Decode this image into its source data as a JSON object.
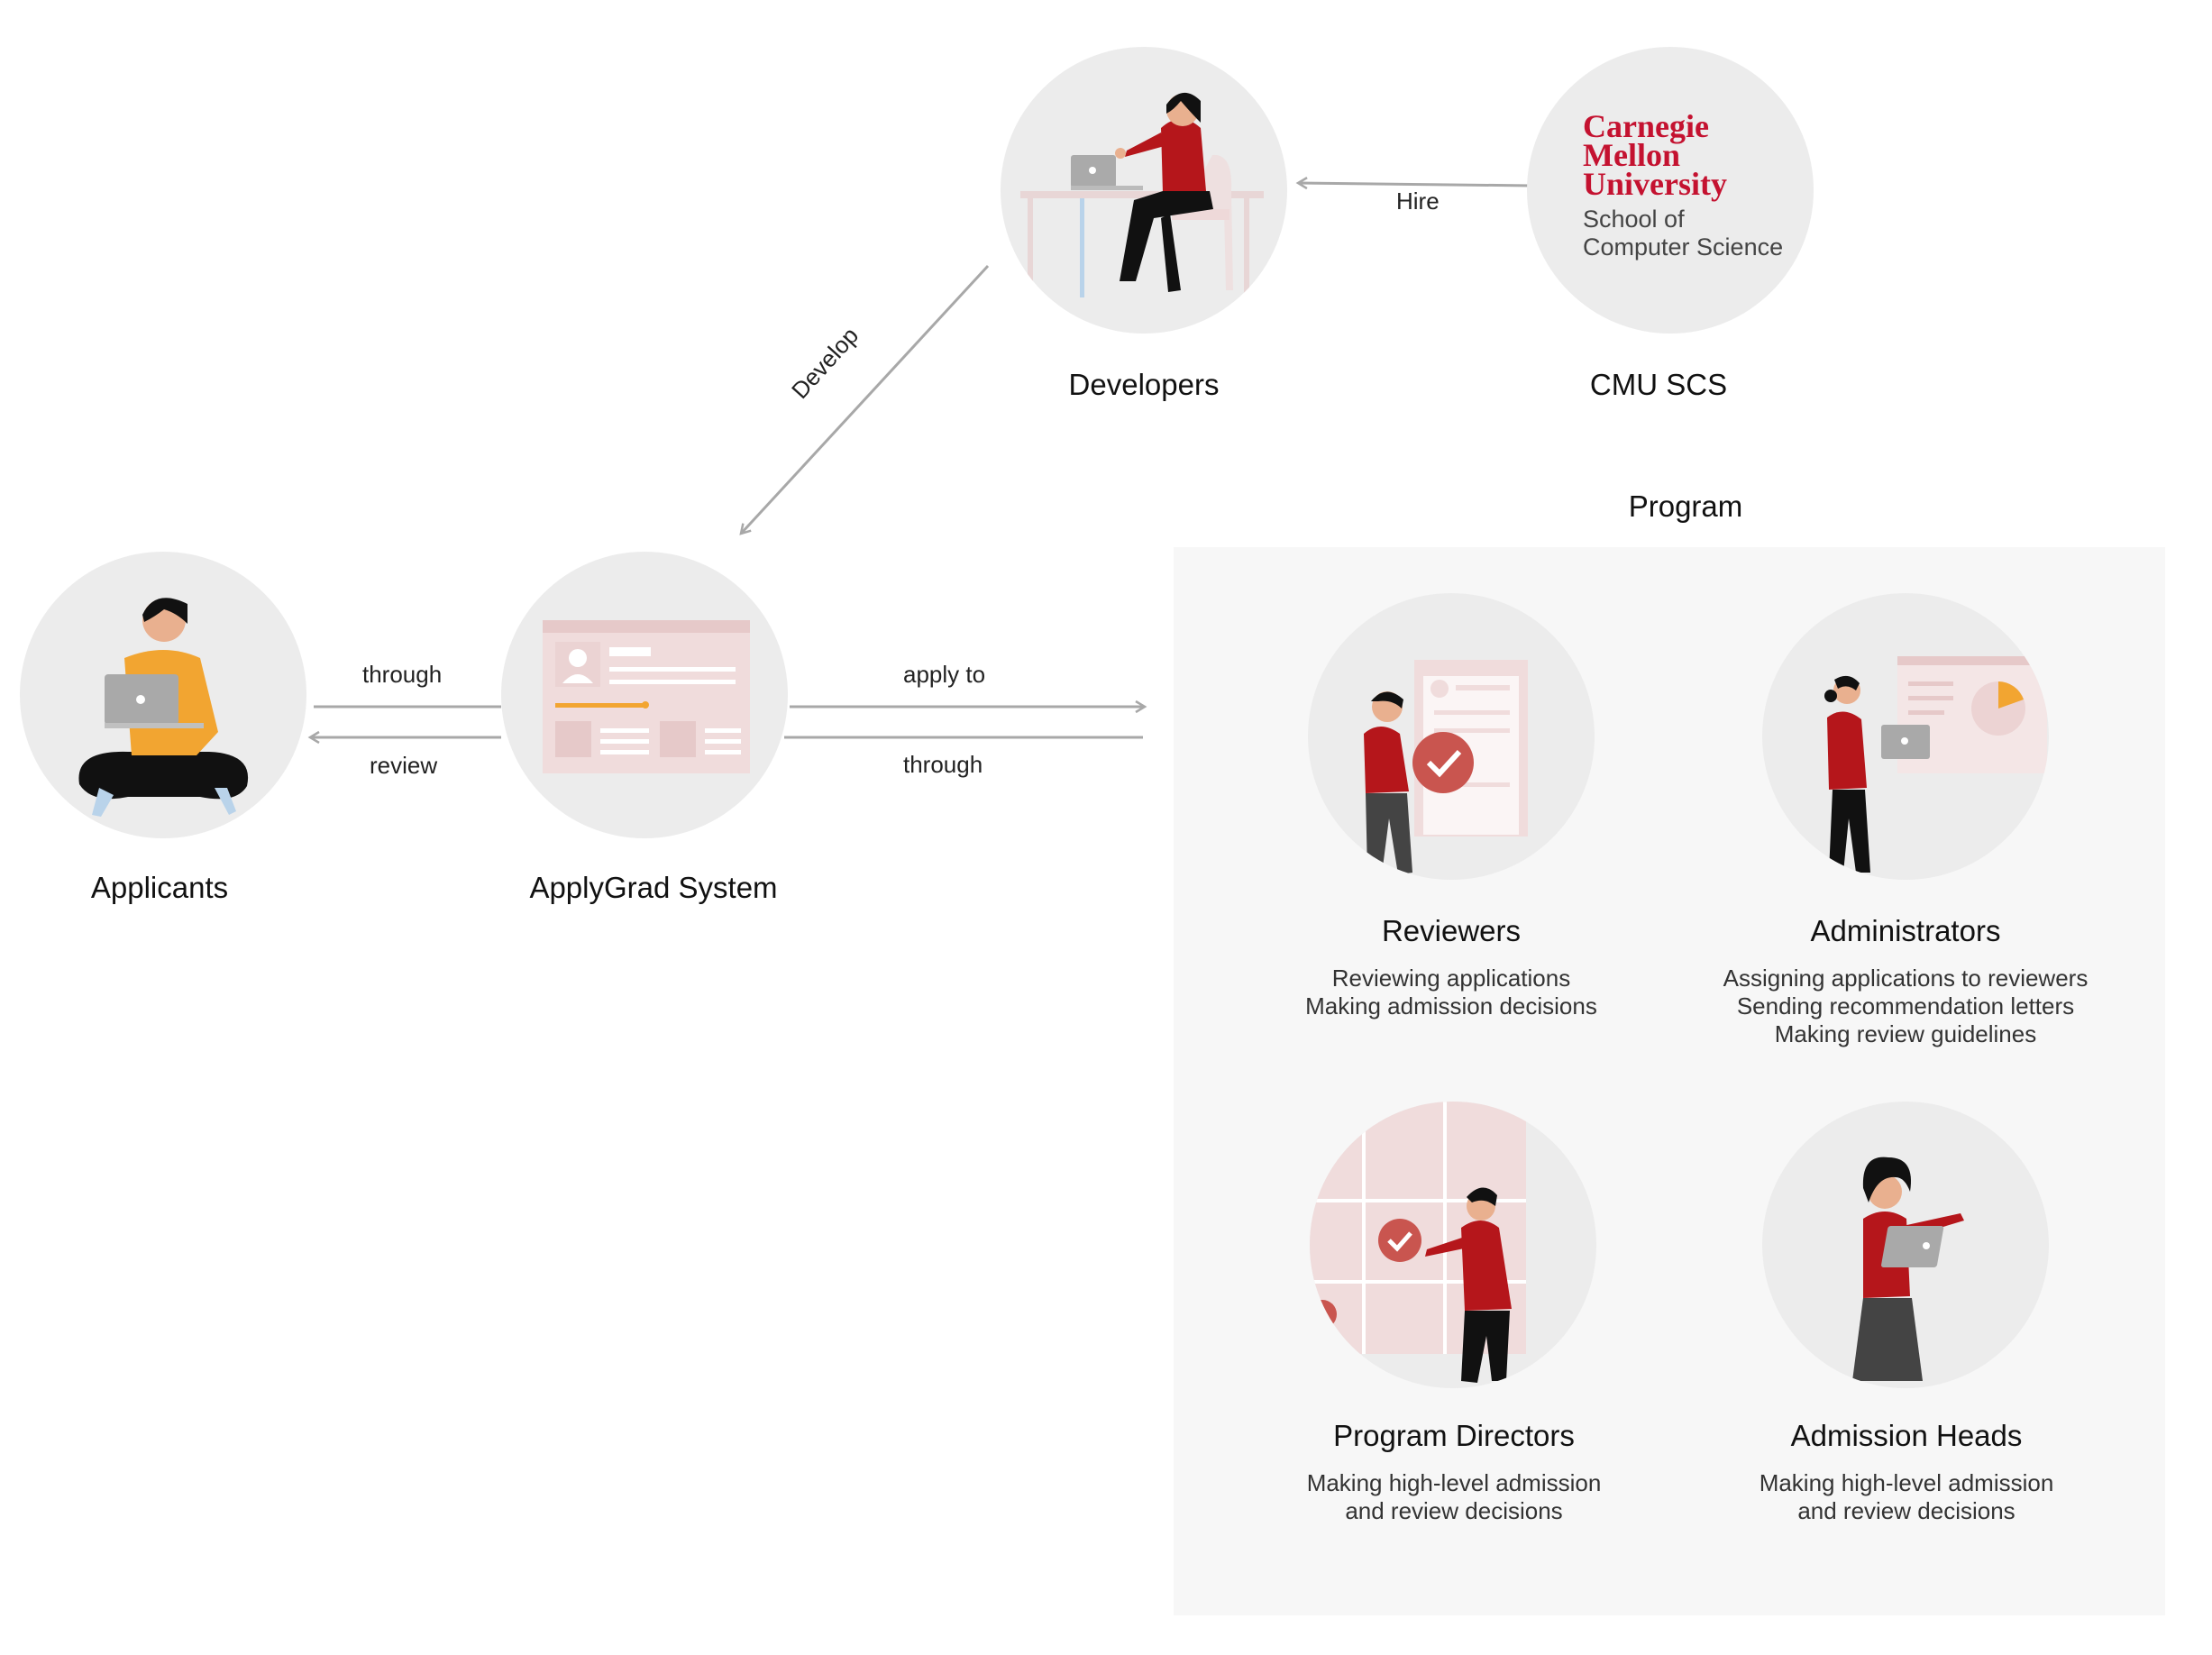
{
  "nodes": {
    "developers": {
      "label": "Developers"
    },
    "cmu": {
      "label": "CMU SCS",
      "logo_lines": [
        "Carnegie",
        "Mellon",
        "University"
      ],
      "logo_sub": [
        "School of",
        "Computer Science"
      ]
    },
    "applicants": {
      "label": "Applicants"
    },
    "applygrad": {
      "label": "ApplyGrad System"
    }
  },
  "edges": {
    "hire": "Hire",
    "develop": "Develop",
    "through_left": "through",
    "review": "review",
    "apply_to": "apply to",
    "through_right": "through"
  },
  "program": {
    "title": "Program",
    "roles": [
      {
        "name": "Reviewers",
        "lines": [
          "Reviewing applications",
          "Making admission decisions"
        ]
      },
      {
        "name": "Administrators",
        "lines": [
          "Assigning applications to reviewers",
          "Sending recommendation letters",
          "Making review guidelines"
        ]
      },
      {
        "name": "Program Directors",
        "lines": [
          "Making high-level admission",
          "and review decisions"
        ]
      },
      {
        "name": "Admission Heads",
        "lines": [
          "Making high-level admission",
          "and review decisions"
        ]
      }
    ]
  },
  "colors": {
    "circle_bg": "#ececec",
    "program_bg": "#f7f7f7",
    "accent_red": "#b5161b",
    "cmu_red": "#c41230",
    "applicant_yellow": "#f2a531",
    "arrow_gray": "#a8a8a8"
  }
}
